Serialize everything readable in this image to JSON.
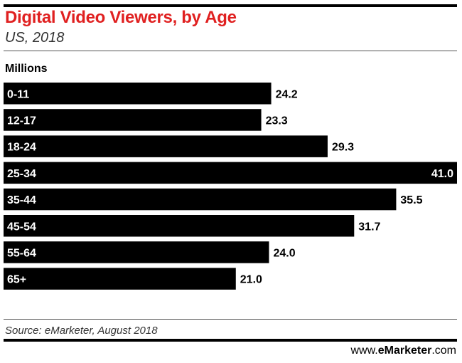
{
  "header": {
    "title": "Digital Video Viewers, by Age",
    "subtitle": "US, 2018"
  },
  "chart_data": {
    "type": "bar",
    "orientation": "horizontal",
    "units_label": "Millions",
    "categories": [
      "0-11",
      "12-17",
      "18-24",
      "25-34",
      "35-44",
      "45-54",
      "55-64",
      "65+"
    ],
    "values": [
      24.2,
      23.3,
      29.3,
      41.0,
      35.5,
      31.7,
      24.0,
      21.0
    ],
    "value_labels": [
      "24.2",
      "23.3",
      "29.3",
      "41.0",
      "35.5",
      "31.7",
      "24.0",
      "21.0"
    ],
    "bar_color": "#000000",
    "xlim": [
      0,
      41.0
    ],
    "grid": false
  },
  "footer": {
    "source": "Source: eMarketer, August 2018",
    "brand_prefix": "www.",
    "brand_name": "eMarketer",
    "brand_suffix": ".com"
  },
  "colors": {
    "title": "#e02020",
    "text": "#000000"
  }
}
